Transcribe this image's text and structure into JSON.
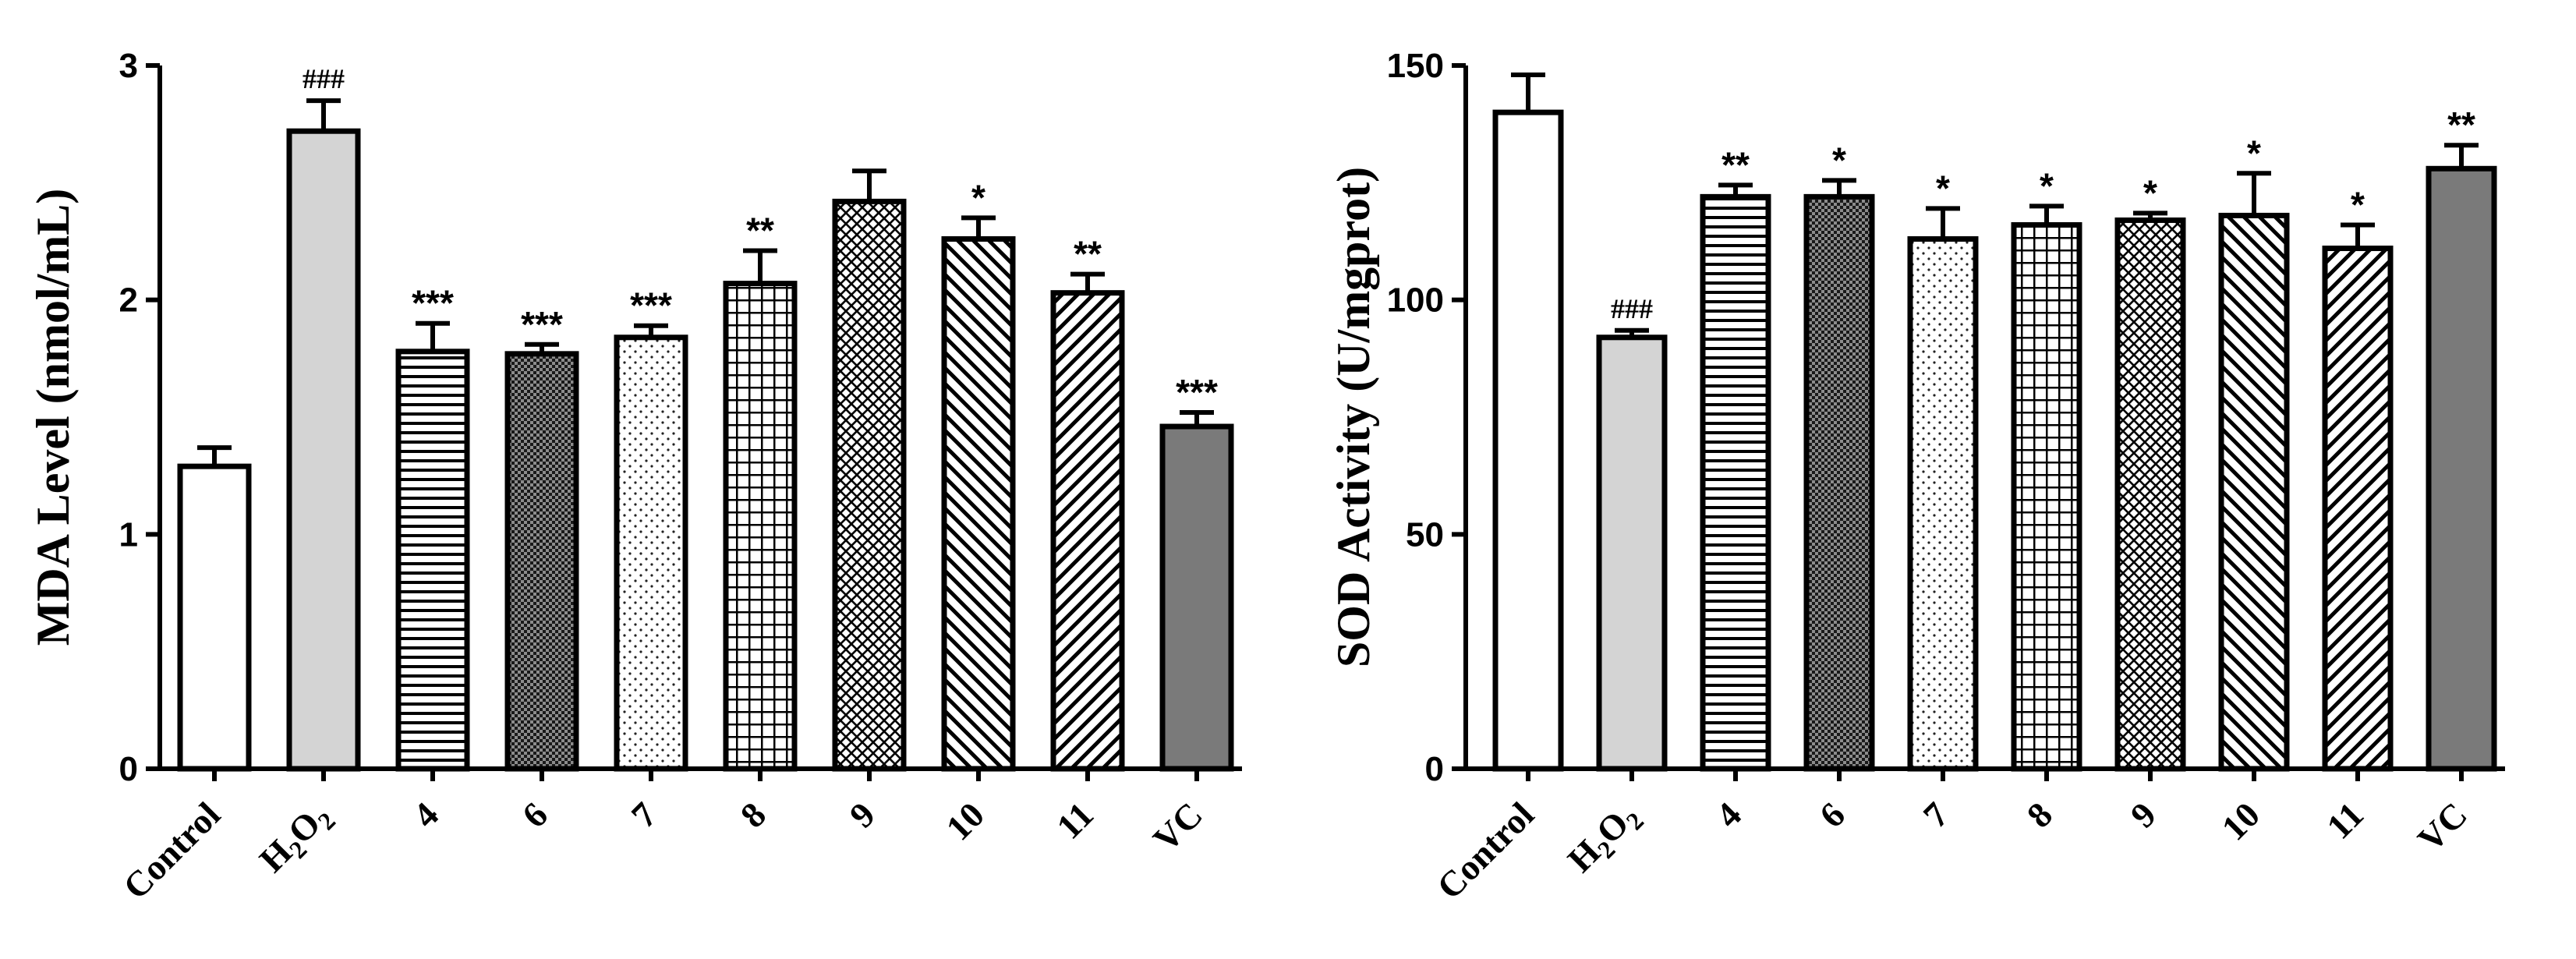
{
  "chart_data": [
    {
      "type": "bar",
      "ylabel": "MDA Level (nmol/mL)",
      "ylim": [
        0,
        3
      ],
      "yticks": [
        "0",
        "1",
        "2",
        "3"
      ],
      "categories": [
        "Control",
        "H2O2",
        "4",
        "6",
        "7",
        "8",
        "9",
        "10",
        "11",
        "VC"
      ],
      "values": [
        1.29,
        2.72,
        1.78,
        1.77,
        1.84,
        2.07,
        2.42,
        2.26,
        2.03,
        1.46
      ],
      "errors": [
        0.08,
        0.13,
        0.12,
        0.04,
        0.05,
        0.14,
        0.13,
        0.09,
        0.08,
        0.06
      ],
      "significance": [
        "",
        "###",
        "***",
        "***",
        "***",
        "**",
        "",
        "*",
        "**",
        "***"
      ],
      "fills": [
        "none",
        "grey",
        "hlines",
        "checker",
        "dots",
        "grid",
        "crosshatch",
        "diag-back",
        "diag-fwd",
        "dark"
      ]
    },
    {
      "type": "bar",
      "ylabel": "SOD Activity (U/mgprot)",
      "ylim": [
        0,
        150
      ],
      "yticks": [
        "0",
        "50",
        "100",
        "150"
      ],
      "categories": [
        "Control",
        "H2O2",
        "4",
        "6",
        "7",
        "8",
        "9",
        "10",
        "11",
        "VC"
      ],
      "values": [
        140,
        92,
        122,
        122,
        113,
        116,
        117,
        118,
        111,
        128
      ],
      "errors": [
        8,
        1.5,
        2.5,
        3.5,
        6.5,
        4,
        1.5,
        9,
        5,
        5
      ],
      "significance": [
        "",
        "###",
        "**",
        "*",
        "*",
        "*",
        "*",
        "*",
        "*",
        "**"
      ],
      "fills": [
        "none",
        "grey",
        "hlines",
        "checker",
        "dots",
        "grid",
        "crosshatch",
        "diag-back",
        "diag-fwd",
        "dark"
      ]
    }
  ],
  "colors": {
    "grey": "#d4d4d4",
    "dark": "#7a7a7a",
    "stroke": "#000000"
  }
}
